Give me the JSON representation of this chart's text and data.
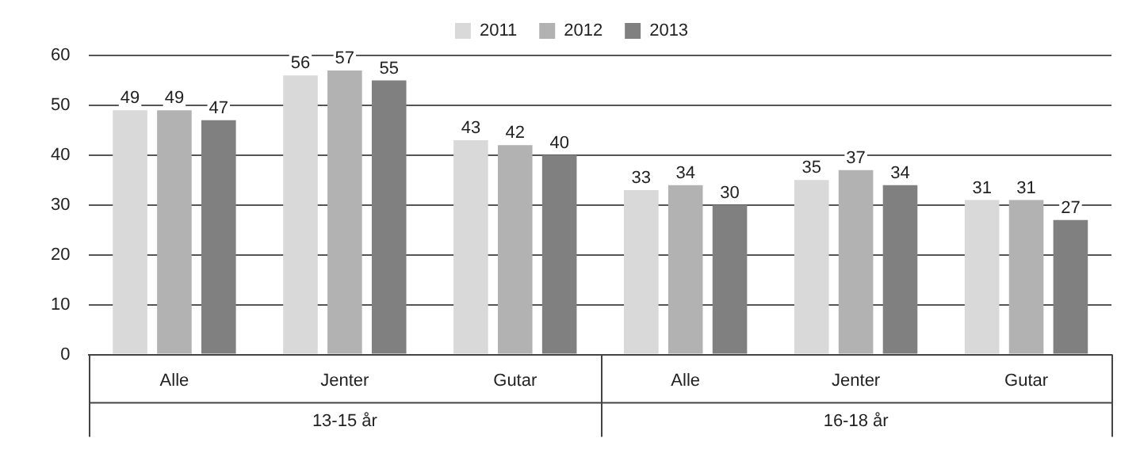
{
  "chart_data": {
    "type": "bar",
    "categories": [
      "Alle",
      "Jenter",
      "Gutar",
      "Alle",
      "Jenter",
      "Gutar"
    ],
    "series": [
      {
        "name": "2011",
        "color": "#d9d9d9",
        "values": [
          49,
          56,
          43,
          33,
          35,
          31
        ]
      },
      {
        "name": "2012",
        "color": "#b2b2b2",
        "values": [
          49,
          57,
          42,
          34,
          37,
          31
        ]
      },
      {
        "name": "2013",
        "color": "#808080",
        "values": [
          47,
          55,
          40,
          30,
          34,
          27
        ]
      }
    ],
    "ylim": [
      0,
      60
    ],
    "yticks": [
      0,
      10,
      20,
      30,
      40,
      50,
      60
    ],
    "grid": "y",
    "legend": "top",
    "data_labels": true,
    "annotations": [
      "13-15 år",
      "16-18 år"
    ]
  }
}
